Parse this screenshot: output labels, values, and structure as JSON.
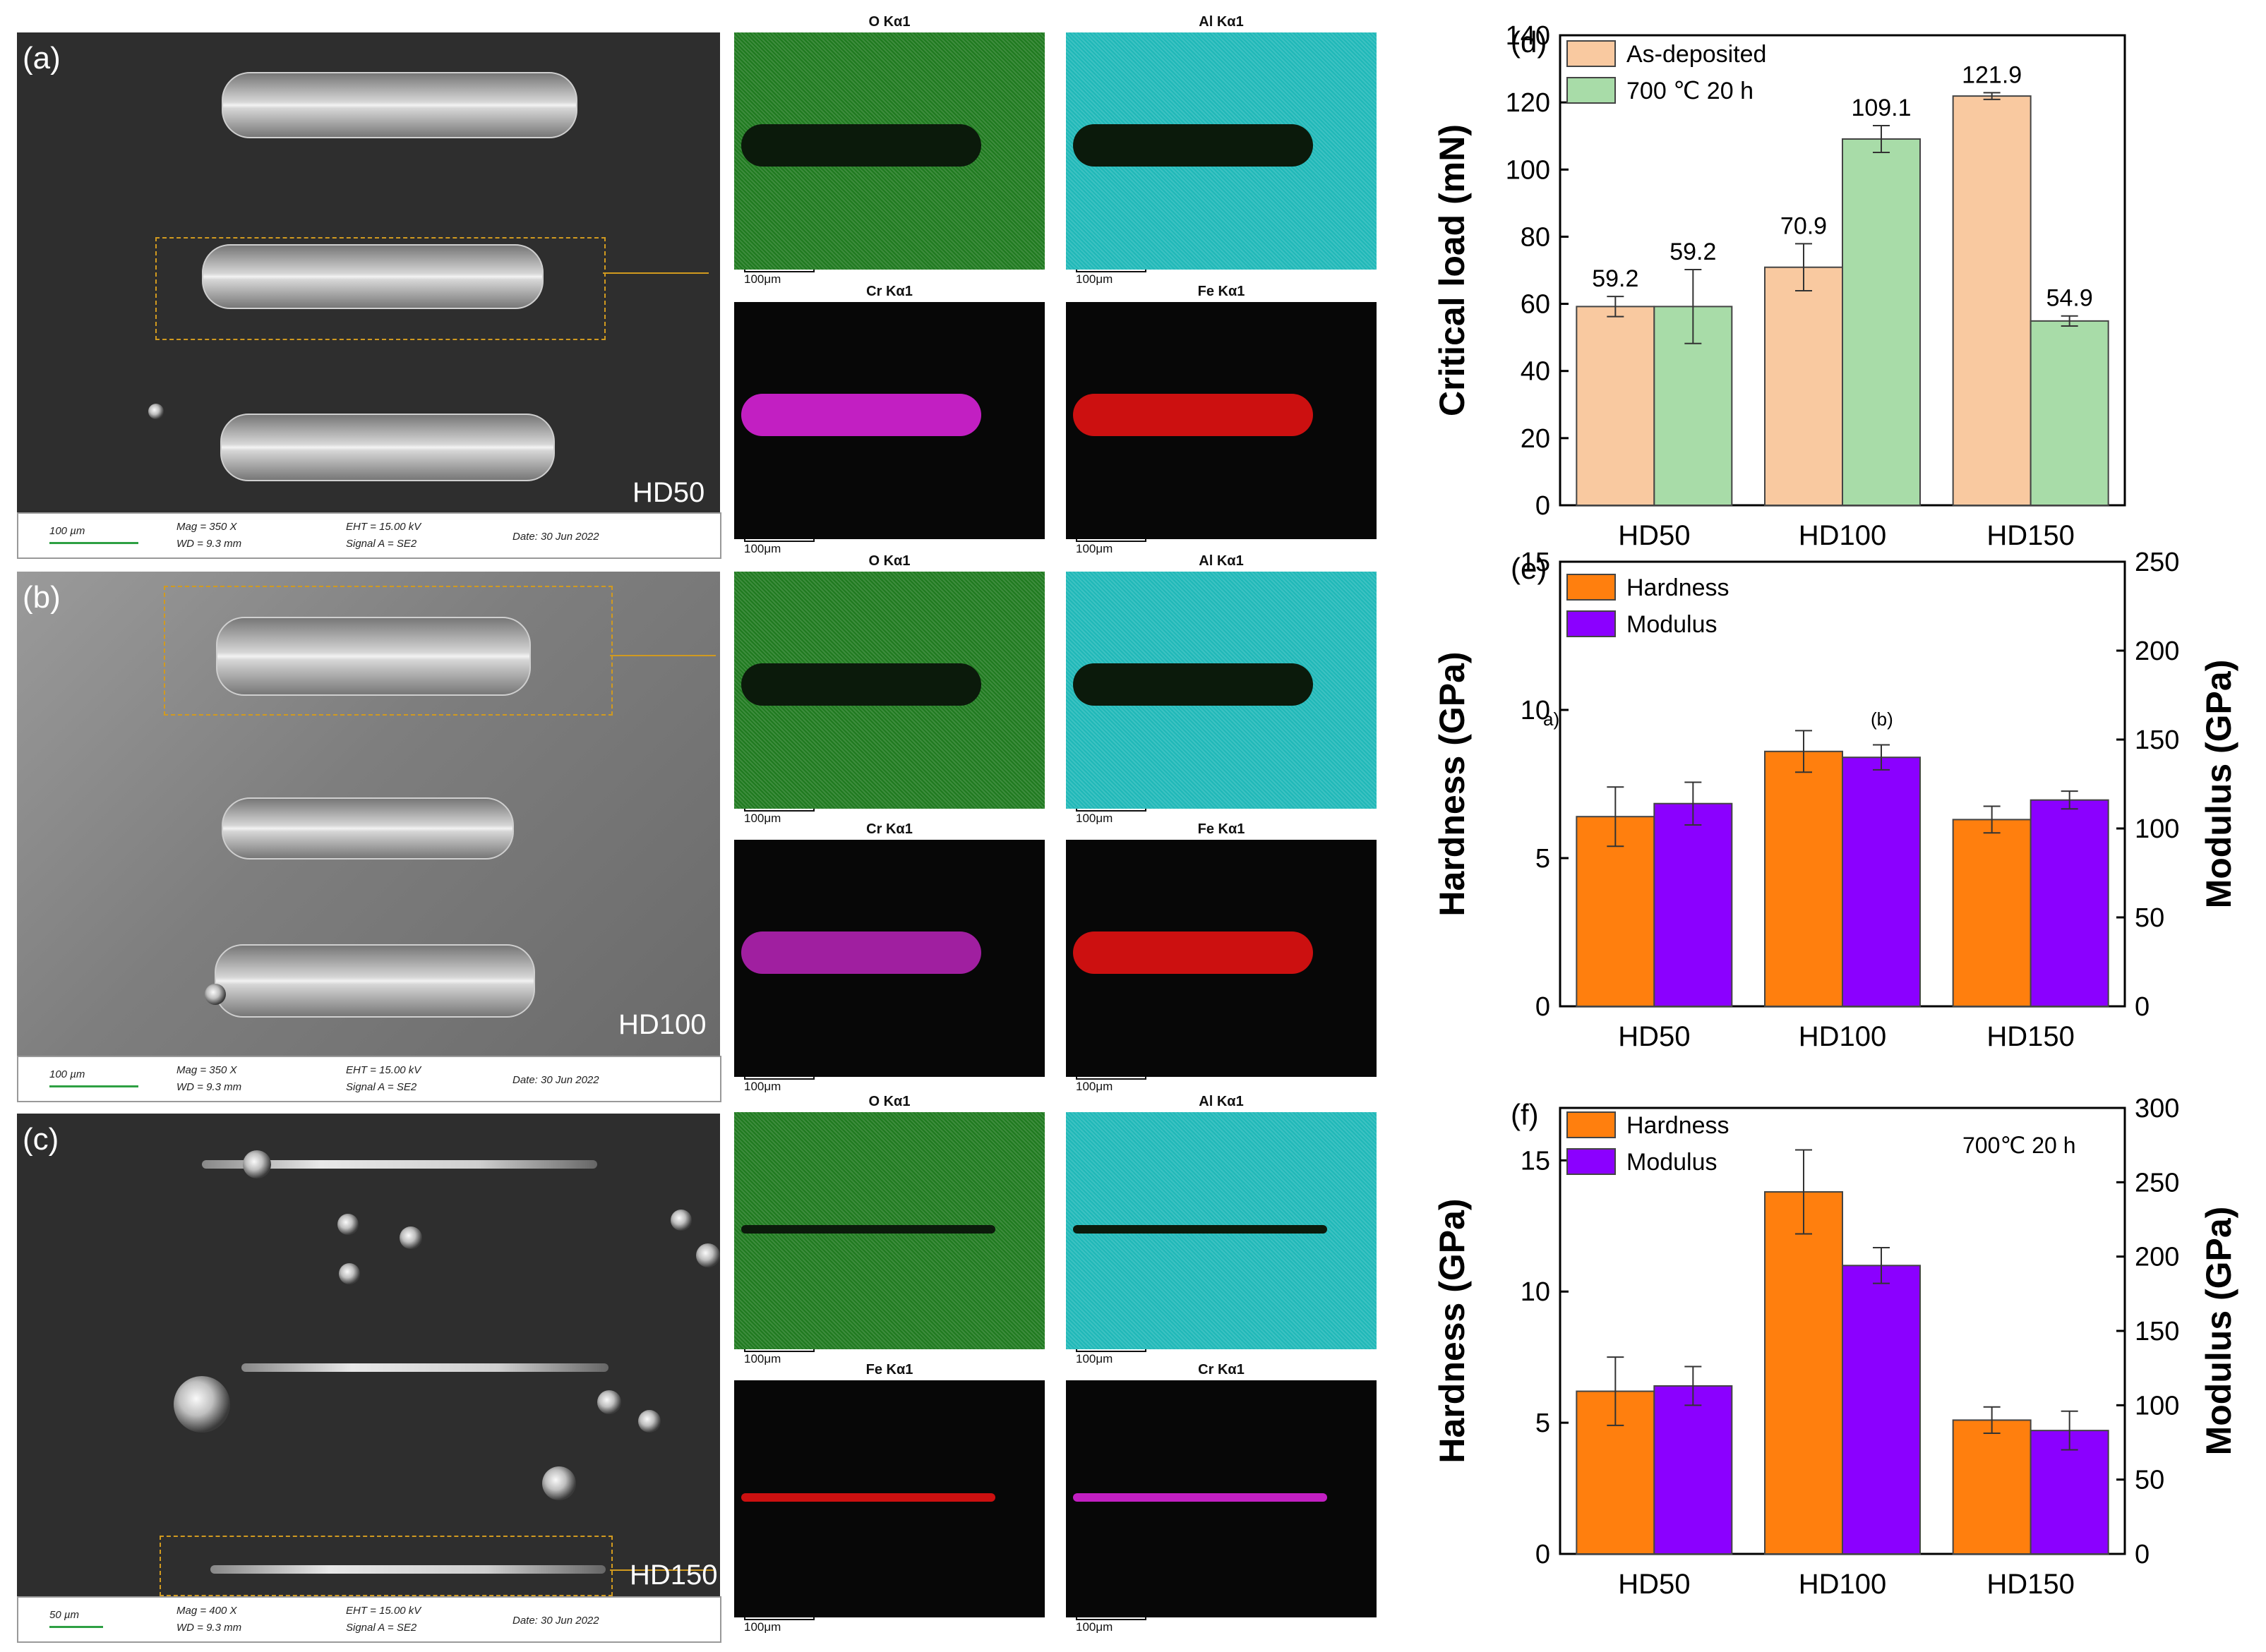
{
  "sem_panels": [
    {
      "letter": "(a)",
      "sample": "HD50",
      "info": {
        "scale": "100 µm",
        "mag": "Mag =   350 X",
        "wd": "WD =  9.3 mm",
        "eht": "EHT = 15.00 kV",
        "signal": "Signal A = SE2",
        "date": "Date: 30 Jun 2022"
      }
    },
    {
      "letter": "(b)",
      "sample": "HD100",
      "info": {
        "scale": "100 µm",
        "mag": "Mag =   350 X",
        "wd": "WD =  9.3 mm",
        "eht": "EHT = 15.00 kV",
        "signal": "Signal A = SE2",
        "date": "Date: 30 Jun 2022"
      }
    },
    {
      "letter": "(c)",
      "sample": "HD150",
      "info": {
        "scale": "50 µm",
        "mag": "Mag =   400 X",
        "wd": "WD =  9.3 mm",
        "eht": "EHT = 15.00 kV",
        "signal": "Signal A = SE2",
        "date": "Date: 30 Jun 2022"
      }
    }
  ],
  "eds_maps": [
    {
      "title": "O Kα1",
      "scale": "100μm",
      "color": "#1f7a1f"
    },
    {
      "title": "Al Kα1",
      "scale": "100μm",
      "color": "#1fb8b8"
    },
    {
      "title": "Cr Kα1",
      "scale": "100μm",
      "color": "#c21fc2"
    },
    {
      "title": "Fe Kα1",
      "scale": "100μm",
      "color": "#cc1010"
    },
    {
      "title": "O Kα1",
      "scale": "100μm",
      "color": "#1f7a1f"
    },
    {
      "title": "Al Kα1",
      "scale": "100μm",
      "color": "#1fb8b8"
    },
    {
      "title": "Cr Kα1",
      "scale": "100μm",
      "color": "#a01fa0"
    },
    {
      "title": "Fe Kα1",
      "scale": "100μm",
      "color": "#cc1010"
    },
    {
      "title": "O Kα1",
      "scale": "100μm",
      "color": "#1f7a1f"
    },
    {
      "title": "Al Kα1",
      "scale": "100μm",
      "color": "#1fb8b8"
    },
    {
      "title": "Fe Kα1",
      "scale": "100μm",
      "color": "#cc1010"
    },
    {
      "title": "Cr Kα1",
      "scale": "100μm",
      "color": "#c21fc2"
    }
  ],
  "chart_data": [
    {
      "panel": "(d)",
      "type": "bar",
      "ylabel": "Critical load (mN)",
      "categories": [
        "HD50",
        "HD100",
        "HD150"
      ],
      "ylim": [
        0,
        140
      ],
      "yticks": [
        0,
        20,
        40,
        60,
        80,
        100,
        120,
        140
      ],
      "series": [
        {
          "name": "As-deposited",
          "values": [
            59.2,
            70.9,
            121.9
          ],
          "errors": [
            3,
            7,
            1
          ],
          "labels": [
            "59.2",
            "70.9",
            "121.9"
          ],
          "color": "#f9c9a0"
        },
        {
          "name": "700 ℃ 20 h",
          "values": [
            59.2,
            109.1,
            54.9
          ],
          "errors": [
            11,
            4,
            1.5
          ],
          "labels": [
            "59.2",
            "109.1",
            "54.9"
          ],
          "color": "#a8dca8"
        }
      ]
    },
    {
      "panel": "(e)",
      "type": "bar",
      "ylabel": "Hardness (GPa)",
      "y2label": "Modulus (GPa)",
      "categories": [
        "HD50",
        "HD100",
        "HD150"
      ],
      "ylim": [
        0,
        15
      ],
      "yticks": [
        0,
        5,
        10,
        15
      ],
      "y2lim": [
        0,
        250
      ],
      "y2ticks": [
        0,
        50,
        100,
        150,
        200,
        250
      ],
      "annotations": [
        "a)",
        "(b)"
      ],
      "series": [
        {
          "name": "Hardness",
          "axis": "left",
          "values": [
            6.4,
            8.6,
            6.3
          ],
          "errors": [
            1.0,
            0.7,
            0.45
          ],
          "color": "#ff7f0e"
        },
        {
          "name": "Modulus",
          "axis": "right",
          "values": [
            114,
            140,
            116
          ],
          "errors": [
            12,
            7,
            5
          ],
          "color": "#8b00ff"
        }
      ]
    },
    {
      "panel": "(f)",
      "type": "bar",
      "ylabel": "Hardness (GPa)",
      "y2label": "Modulus (GPa)",
      "categories": [
        "HD50",
        "HD100",
        "HD150"
      ],
      "ylim": [
        0,
        17
      ],
      "yticks": [
        0,
        5,
        10,
        15
      ],
      "y2lim": [
        0,
        300
      ],
      "y2ticks": [
        0,
        50,
        100,
        150,
        200,
        250,
        300
      ],
      "annotation": "700℃ 20 h",
      "series": [
        {
          "name": "Hardness",
          "axis": "left",
          "values": [
            6.2,
            13.8,
            5.1
          ],
          "errors": [
            1.3,
            1.6,
            0.5
          ],
          "color": "#ff7f0e"
        },
        {
          "name": "Modulus",
          "axis": "right",
          "values": [
            113,
            194,
            83
          ],
          "errors": [
            13,
            12,
            13
          ],
          "color": "#8b00ff"
        }
      ]
    }
  ]
}
